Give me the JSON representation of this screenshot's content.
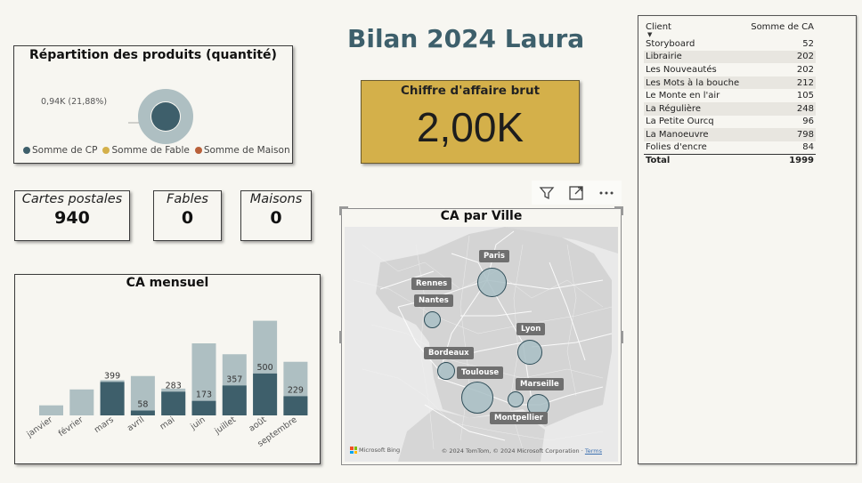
{
  "page_title": "Bilan 2024 Laura",
  "pie": {
    "title": "Répartition des produits (quantité)",
    "slice_label": "0,94K (21,88%)",
    "legend": [
      {
        "label": "Somme de CP",
        "color": "#3e5f6b"
      },
      {
        "label": "Somme de Fable",
        "color": "#d4b04a"
      },
      {
        "label": "Somme de Maison",
        "color": "#b9603a"
      }
    ]
  },
  "kpi": {
    "label": "Chiffre d'affaire brut",
    "value": "2,00K"
  },
  "cards": {
    "cp": {
      "label": "Cartes postales",
      "value": "940"
    },
    "fables": {
      "label": "Fables",
      "value": "0"
    },
    "maisons": {
      "label": "Maisons",
      "value": "0"
    }
  },
  "chart_data": {
    "type": "bar",
    "title": "CA mensuel",
    "categories": [
      "janvier",
      "février",
      "mars",
      "avril",
      "mai",
      "juin",
      "juillet",
      "août",
      "septembre"
    ],
    "series": [
      {
        "name": "",
        "color": "#aebfc2",
        "values": [
          120,
          310,
          420,
          470,
          320,
          860,
          730,
          1130,
          640
        ]
      },
      {
        "name": "",
        "color": "#3e5f6b",
        "values": [
          0,
          0,
          399,
          58,
          283,
          173,
          357,
          500,
          229
        ]
      }
    ],
    "data_labels": [
      "",
      "",
      "399",
      "58",
      "283",
      "173",
      "357",
      "500",
      "229"
    ],
    "ylim": [
      0,
      1200
    ]
  },
  "map": {
    "title": "CA par Ville",
    "cities": [
      {
        "name": "Paris",
        "bubble": "Paris"
      },
      {
        "name": "Rennes"
      },
      {
        "name": "Nantes"
      },
      {
        "name": "Lyon"
      },
      {
        "name": "Bordeaux"
      },
      {
        "name": "Toulouse"
      },
      {
        "name": "Marseille"
      },
      {
        "name": "Montpellier"
      }
    ],
    "credit": "© 2024 TomTom, © 2024 Microsoft Corporation",
    "terms": "Terms",
    "bing": "Microsoft Bing"
  },
  "visual_header": {
    "filter_icon": "filter-icon",
    "focus_icon": "focus-mode-icon",
    "more_icon": "more-options-icon"
  },
  "table": {
    "col_client": "Client",
    "col_sum": "Somme de CA",
    "rows": [
      {
        "client": "Storyboard",
        "value": "52"
      },
      {
        "client": "Librairie",
        "value": "202"
      },
      {
        "client": "Les Nouveautés",
        "value": "202"
      },
      {
        "client": "Les Mots à la bouche",
        "value": "212"
      },
      {
        "client": "Le Monte en l'air",
        "value": "105"
      },
      {
        "client": "La Régulière",
        "value": "248"
      },
      {
        "client": "La Petite Ourcq",
        "value": "96"
      },
      {
        "client": "La Manoeuvre",
        "value": "798"
      },
      {
        "client": "Folies d'encre",
        "value": "84"
      }
    ],
    "total_label": "Total",
    "total_value": "1999"
  }
}
